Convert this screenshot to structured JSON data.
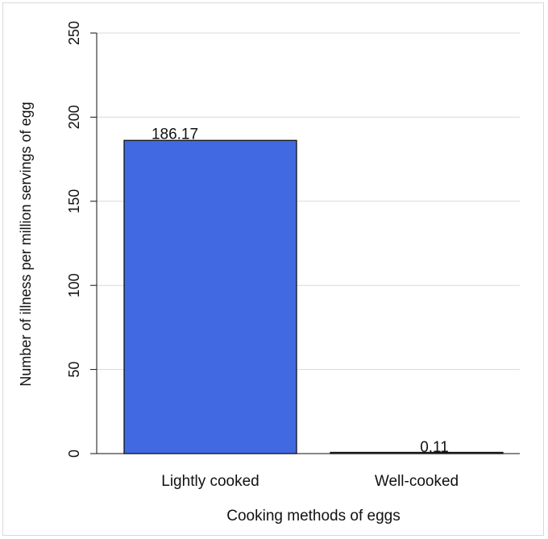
{
  "chart_data": {
    "type": "bar",
    "title": "",
    "categories": [
      "Lightly cooked",
      "Well-cooked"
    ],
    "values": [
      186.17,
      0.11
    ],
    "value_labels": [
      "186.17",
      "0.11"
    ],
    "xlabel": "Cooking methods of eggs",
    "ylabel": "Number of illness per million servings of egg",
    "ylim": [
      0,
      250
    ],
    "yticks": [
      0,
      50,
      100,
      150,
      200,
      250
    ],
    "ytick_labels": [
      "0",
      "50",
      "100",
      "150",
      "200",
      "250"
    ],
    "grid": "horizontal",
    "legend": "none",
    "colors": {
      "bar": "#4169e1",
      "bar_border": "#111111",
      "grid": "#d9d9d9",
      "axis": "#111111"
    }
  }
}
